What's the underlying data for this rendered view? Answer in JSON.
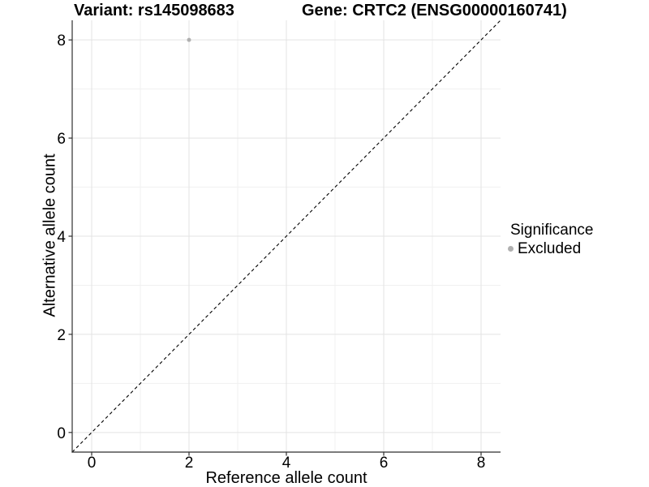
{
  "chart_data": {
    "type": "scatter",
    "titles": {
      "left": "Variant: rs145098683",
      "right": "Gene: CRTC2 (ENSG00000160741)"
    },
    "xlabel": "Reference allele count",
    "ylabel": "Alternative allele count",
    "x_ticks": [
      0,
      2,
      4,
      6,
      8
    ],
    "y_ticks": [
      0,
      2,
      4,
      6,
      8
    ],
    "x_minor_gridlines": [
      1,
      3,
      5,
      7
    ],
    "y_minor_gridlines": [
      1,
      3,
      5,
      7
    ],
    "xlim": [
      -0.4,
      8.4
    ],
    "ylim": [
      -0.4,
      8.4
    ],
    "grid": "major and minor, light gray, on white panel",
    "points": [
      {
        "x": 2,
        "y": 8,
        "significance": "Excluded"
      }
    ],
    "identity_line": {
      "style": "dashed",
      "equation": "y = x",
      "from": [
        -0.4,
        -0.4
      ],
      "to": [
        8.4,
        8.4
      ]
    },
    "legend": {
      "title": "Significance",
      "position": "right",
      "items": [
        {
          "label": "Excluded",
          "color": "#b0b0b0"
        }
      ]
    },
    "colors": {
      "point": "#b0b0b0",
      "grid_major": "#e3e3e3",
      "grid_minor": "#f0f0f0",
      "axis_line": "#2f2f2f",
      "identity_line": "#000000",
      "text": "#000000"
    }
  }
}
